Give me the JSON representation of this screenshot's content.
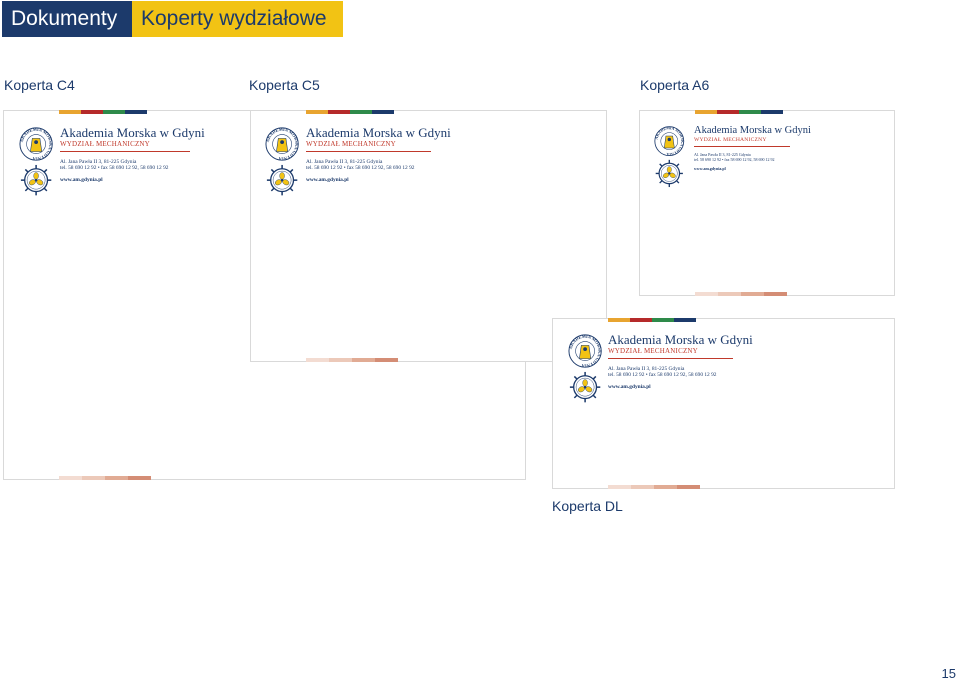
{
  "header": {
    "section": "Dokumenty",
    "title": "Koperty wydziałowe"
  },
  "labels": {
    "c4": "Koperta C4",
    "c5": "Koperta C5",
    "a6": "Koperta A6",
    "dl": "Koperta DL"
  },
  "page_number": "15",
  "letterhead": {
    "name": "Akademia Morska w Gdyni",
    "department": "WYDZIAŁ MECHANICZNY",
    "address": "Al. Jana Pawła II 3, 81-225 Gdynia",
    "phone": "tel. 58 690 12 92 • fax 58 690 12 92, 58 690 12 92",
    "website": "www.am.gdynia.pl",
    "seal_text": "AKADEMIA MORSKA GDYNIA"
  },
  "colors": {
    "navy": "#1c3a6b",
    "yellow": "#f2c314",
    "stripe": [
      "#e8a430",
      "#b52a2a",
      "#2e8a4a",
      "#1c3a6b"
    ],
    "bottom_stripe": [
      "#f3dcd2",
      "#ecc9b9",
      "#e1ab94",
      "#d48d75"
    ]
  }
}
